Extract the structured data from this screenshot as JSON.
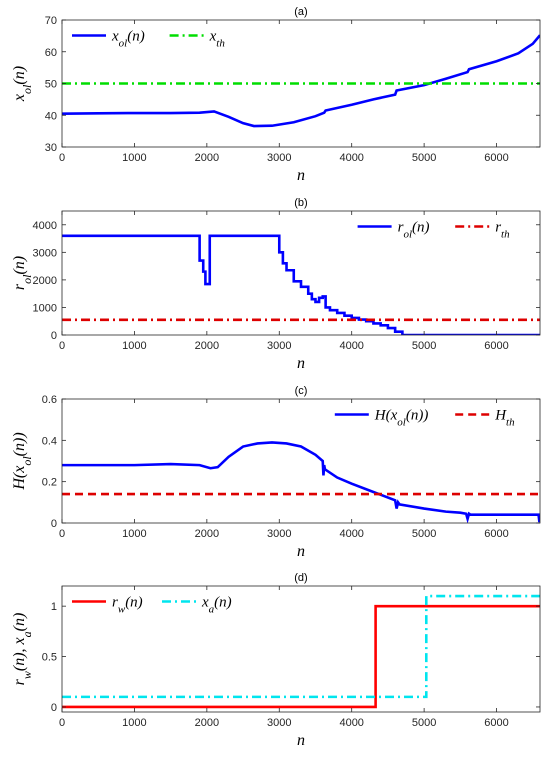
{
  "chart_data": [
    {
      "type": "line",
      "panel": "(a)",
      "title": "(a)",
      "xlabel": "n",
      "ylabel": "x_{ol}(n)",
      "xlim": [
        0,
        6600
      ],
      "ylim": [
        30,
        70
      ],
      "xticks": [
        0,
        1000,
        2000,
        3000,
        4000,
        5000,
        6000
      ],
      "yticks": [
        30,
        40,
        50,
        60,
        70
      ],
      "grid": false,
      "legend": "top-left",
      "series": [
        {
          "name": "x_{ol}(n)",
          "color": "#0000ff",
          "style": "solid",
          "x": [
            0,
            500,
            1000,
            1500,
            1900,
            2100,
            2300,
            2500,
            2650,
            2900,
            3200,
            3500,
            3620,
            3640,
            4000,
            4300,
            4600,
            4620,
            5000,
            5300,
            5600,
            5620,
            6000,
            6300,
            6500,
            6600
          ],
          "y": [
            40.5,
            40.6,
            40.7,
            40.7,
            40.8,
            41.2,
            39.5,
            37.5,
            36.6,
            36.7,
            37.8,
            39.7,
            40.8,
            41.5,
            43.3,
            45.0,
            46.5,
            47.8,
            49.5,
            51.5,
            53.6,
            54.5,
            57.0,
            59.5,
            62.5,
            65.2
          ]
        },
        {
          "name": "x_{th}",
          "color": "#00dd00",
          "style": "dashdot",
          "x": [
            0,
            6600
          ],
          "y": [
            50,
            50
          ]
        }
      ]
    },
    {
      "type": "line",
      "panel": "(b)",
      "title": "(b)",
      "xlabel": "n",
      "ylabel": "r_{ol}(n)",
      "xlim": [
        0,
        6600
      ],
      "ylim": [
        0,
        4500
      ],
      "xticks": [
        0,
        1000,
        2000,
        3000,
        4000,
        5000,
        6000
      ],
      "yticks": [
        0,
        1000,
        2000,
        3000,
        4000
      ],
      "grid": false,
      "legend": "top-right",
      "series": [
        {
          "name": "r_{ol}(n)",
          "color": "#0000ff",
          "style": "solid",
          "x": [
            0,
            1900,
            1900,
            1950,
            1950,
            1980,
            1980,
            2040,
            2040,
            3000,
            3000,
            3050,
            3050,
            3100,
            3100,
            3200,
            3200,
            3300,
            3300,
            3400,
            3400,
            3450,
            3450,
            3500,
            3500,
            3550,
            3550,
            3600,
            3600,
            3640,
            3640,
            3700,
            3700,
            3800,
            3800,
            3900,
            3900,
            4000,
            4000,
            4100,
            4100,
            4200,
            4200,
            4300,
            4300,
            4400,
            4400,
            4500,
            4500,
            4600,
            4600,
            4700,
            4700,
            6600
          ],
          "y": [
            3600,
            3600,
            2700,
            2700,
            2300,
            2300,
            1850,
            1850,
            3600,
            3600,
            3000,
            3000,
            2600,
            2600,
            2350,
            2350,
            1950,
            1950,
            1750,
            1750,
            1500,
            1500,
            1300,
            1300,
            1200,
            1200,
            1350,
            1350,
            1400,
            1400,
            1000,
            1000,
            900,
            900,
            800,
            800,
            700,
            700,
            620,
            620,
            560,
            560,
            500,
            500,
            420,
            420,
            350,
            350,
            250,
            250,
            120,
            120,
            0,
            0
          ]
        },
        {
          "name": "r_{th}",
          "color": "#dd0000",
          "style": "dashdot",
          "x": [
            0,
            6600
          ],
          "y": [
            550,
            550
          ]
        }
      ]
    },
    {
      "type": "line",
      "panel": "(c)",
      "title": "(c)",
      "xlabel": "n",
      "ylabel": "H(x_{ol}(n))",
      "xlim": [
        0,
        6600
      ],
      "ylim": [
        0,
        0.6
      ],
      "xticks": [
        0,
        1000,
        2000,
        3000,
        4000,
        5000,
        6000
      ],
      "yticks": [
        0,
        0.2,
        0.4,
        0.6
      ],
      "grid": false,
      "legend": "top-right",
      "series": [
        {
          "name": "H(x_{ol}(n))",
          "color": "#0000ff",
          "style": "solid",
          "x": [
            0,
            500,
            1000,
            1500,
            1900,
            2050,
            2150,
            2300,
            2500,
            2700,
            2900,
            3100,
            3300,
            3500,
            3600,
            3610,
            3620,
            3630,
            3800,
            4000,
            4300,
            4600,
            4620,
            4640,
            4660,
            5000,
            5300,
            5500,
            5580,
            5600,
            5620,
            5640,
            6000,
            6500,
            6580,
            6590,
            6600
          ],
          "y": [
            0.28,
            0.28,
            0.28,
            0.285,
            0.28,
            0.265,
            0.27,
            0.32,
            0.37,
            0.385,
            0.39,
            0.385,
            0.37,
            0.33,
            0.3,
            0.23,
            0.28,
            0.26,
            0.22,
            0.19,
            0.15,
            0.11,
            0.07,
            0.1,
            0.09,
            0.07,
            0.055,
            0.05,
            0.045,
            0.02,
            0.045,
            0.04,
            0.04,
            0.04,
            0.04,
            0.01,
            0.01
          ]
        },
        {
          "name": "H_{th}",
          "color": "#dd0000",
          "style": "dashed",
          "x": [
            0,
            6600
          ],
          "y": [
            0.14,
            0.14
          ]
        }
      ]
    },
    {
      "type": "line",
      "panel": "(d)",
      "title": "(d)",
      "xlabel": "n",
      "ylabel": "r_w(n), x_a(n)",
      "xlim": [
        0,
        6600
      ],
      "ylim": [
        -0.05,
        1.2
      ],
      "xticks": [
        0,
        1000,
        2000,
        3000,
        4000,
        5000,
        6000
      ],
      "yticks": [
        0,
        0.5,
        1
      ],
      "grid": false,
      "legend": "top-left",
      "series": [
        {
          "name": "r_w(n)",
          "color": "#ff0000",
          "style": "solid",
          "x": [
            0,
            4330,
            4330,
            6600
          ],
          "y": [
            0,
            0,
            1,
            1
          ]
        },
        {
          "name": "x_a(n)",
          "color": "#00e5ee",
          "style": "dashdot",
          "x": [
            0,
            5030,
            5030,
            6600
          ],
          "y": [
            0.1,
            0.1,
            1.1,
            1.1
          ]
        }
      ]
    }
  ]
}
